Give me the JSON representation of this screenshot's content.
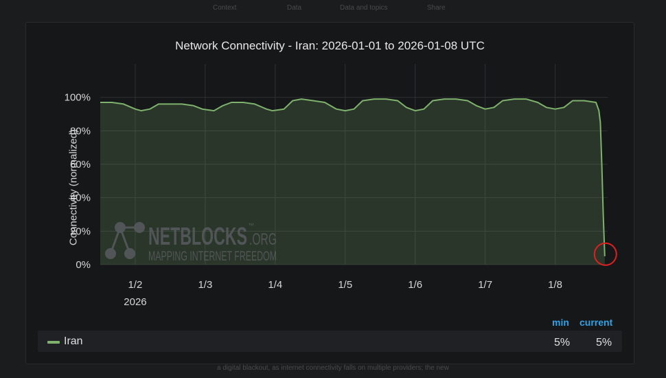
{
  "page": {
    "nav_tabs": [
      "Context",
      "Data",
      "Data and topics",
      "Share"
    ],
    "caption": "a digital blackout, as internet connectivity falls on multiple providers; the new"
  },
  "chart_data": {
    "type": "area",
    "title": "Network Connectivity - Iran: 2026-01-01 to 2026-01-08 UTC",
    "xlabel": "",
    "ylabel": "Connectivity (normalized)",
    "ylim": [
      0,
      120
    ],
    "xlim": [
      "2026-01-01T12:00",
      "2026-01-08T18:00"
    ],
    "x_ticks": [
      "2026-01-02",
      "2026-01-03",
      "2026-01-04",
      "2026-01-05",
      "2026-01-06",
      "2026-01-07",
      "2026-01-08"
    ],
    "x_tick_labels": [
      "1/2",
      "1/3",
      "1/4",
      "1/5",
      "1/6",
      "1/7",
      "1/8"
    ],
    "x_year_label": "2026",
    "y_ticks": [
      0,
      20,
      40,
      60,
      80,
      100
    ],
    "y_tick_labels": [
      "0%",
      "20%",
      "40%",
      "60%",
      "80%",
      "100%"
    ],
    "grid": true,
    "legend_position": "bottom",
    "series": [
      {
        "name": "Iran",
        "color": "#7eb26d",
        "x": [
          "2026-01-01T12:00",
          "2026-01-01T16:00",
          "2026-01-01T20:00",
          "2026-01-02T00:00",
          "2026-01-02T02:00",
          "2026-01-02T05:00",
          "2026-01-02T08:00",
          "2026-01-02T12:00",
          "2026-01-02T16:00",
          "2026-01-02T20:00",
          "2026-01-02T23:00",
          "2026-01-03T03:00",
          "2026-01-03T06:00",
          "2026-01-03T09:00",
          "2026-01-03T13:00",
          "2026-01-03T17:00",
          "2026-01-03T21:00",
          "2026-01-03T23:00",
          "2026-01-04T03:00",
          "2026-01-04T06:00",
          "2026-01-04T09:00",
          "2026-01-04T13:00",
          "2026-01-04T17:00",
          "2026-01-04T21:00",
          "2026-01-05T00:00",
          "2026-01-05T03:00",
          "2026-01-05T06:00",
          "2026-01-05T10:00",
          "2026-01-05T14:00",
          "2026-01-05T18:00",
          "2026-01-05T21:00",
          "2026-01-06T00:00",
          "2026-01-06T03:00",
          "2026-01-06T06:00",
          "2026-01-06T10:00",
          "2026-01-06T14:00",
          "2026-01-06T18:00",
          "2026-01-06T21:00",
          "2026-01-07T00:00",
          "2026-01-07T03:00",
          "2026-01-07T06:00",
          "2026-01-07T10:00",
          "2026-01-07T14:00",
          "2026-01-07T18:00",
          "2026-01-07T21:00",
          "2026-01-08T00:00",
          "2026-01-08T03:00",
          "2026-01-08T06:00",
          "2026-01-08T10:00",
          "2026-01-08T14:00",
          "2026-01-08T15:00",
          "2026-01-08T15:30",
          "2026-01-08T16:00",
          "2026-01-08T16:30",
          "2026-01-08T17:00"
        ],
        "values": [
          97,
          97,
          96,
          93,
          92,
          93,
          96,
          96,
          96,
          95,
          93,
          92,
          95,
          97,
          97,
          96,
          93,
          92,
          93,
          98,
          99,
          98,
          97,
          93,
          92,
          93,
          98,
          99,
          99,
          98,
          94,
          92,
          93,
          98,
          99,
          99,
          98,
          95,
          93,
          94,
          98,
          99,
          99,
          97,
          94,
          93,
          94,
          98,
          98,
          97,
          92,
          85,
          60,
          30,
          5
        ]
      }
    ],
    "stats": {
      "headers": [
        "min",
        "current"
      ],
      "Iran": {
        "min": "5%",
        "current": "5%"
      }
    },
    "annotations": [
      {
        "type": "circle",
        "color": "#e02020",
        "x": "2026-01-08T17:00",
        "y": 5
      }
    ],
    "watermark": {
      "brand": "NETBLOCKS",
      "suffix": ".ORG",
      "tm": "™",
      "tagline": "MAPPING INTERNET FREEDOM"
    }
  }
}
